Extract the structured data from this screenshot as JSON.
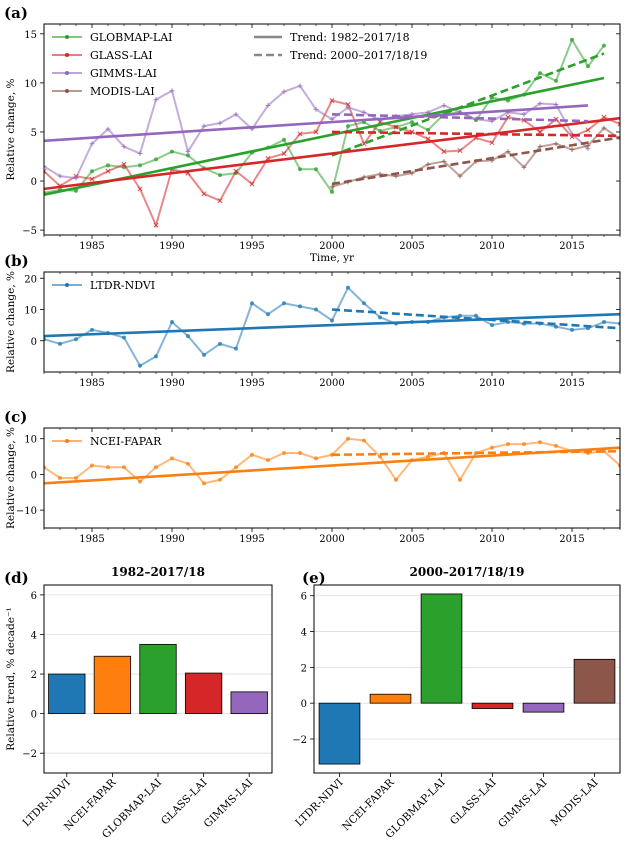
{
  "chart_data": [
    {
      "type": "line",
      "panel": "(a)",
      "xlabel": "Time, yr",
      "ylabel": "Relative change, %",
      "xlim": [
        1982,
        2018
      ],
      "ylim": [
        -5.5,
        16
      ],
      "xticks": [
        1985,
        1990,
        1995,
        2000,
        2005,
        2010,
        2015
      ],
      "yticks": [
        -5,
        0,
        5,
        10,
        15
      ],
      "legend": [
        "GLOBMAP-LAI",
        "GLASS-LAI",
        "GIMMS-LAI",
        "MODIS-LAI"
      ],
      "trend_legend": [
        "Trend: 1982–2017/18",
        "Trend: 2000–2017/18/19"
      ],
      "series": [
        {
          "name": "GLOBMAP-LAI",
          "color": "#2ca02c",
          "marker": "dot",
          "x": [
            1982,
            1983,
            1984,
            1985,
            1986,
            1987,
            1988,
            1989,
            1990,
            1991,
            1992,
            1993,
            1994,
            1995,
            1996,
            1997,
            1998,
            1999,
            2000,
            2001,
            2002,
            2003,
            2004,
            2005,
            2006,
            2007,
            2008,
            2009,
            2010,
            2011,
            2012,
            2013,
            2014,
            2015,
            2016,
            2017
          ],
          "y": [
            -1.2,
            -0.9,
            -1.0,
            1.0,
            1.6,
            1.4,
            1.6,
            2.2,
            3.0,
            2.6,
            1.3,
            0.6,
            0.8,
            2.9,
            3.4,
            4.2,
            1.2,
            1.2,
            -1.1,
            5.6,
            6.0,
            5.1,
            5.5,
            6.0,
            5.2,
            6.8,
            7.0,
            6.2,
            8.5,
            8.2,
            8.8,
            11.0,
            10.2,
            14.4,
            11.7,
            13.8
          ],
          "trend": {
            "x": [
              1982,
              2017
            ],
            "y": [
              -1.4,
              10.5
            ]
          },
          "trend2": {
            "x": [
              2000,
              2017
            ],
            "y": [
              2.6,
              13.0
            ]
          }
        },
        {
          "name": "GLASS-LAI",
          "color": "#d62728",
          "marker": "x",
          "x": [
            1982,
            1983,
            1984,
            1985,
            1986,
            1987,
            1988,
            1989,
            1990,
            1991,
            1992,
            1993,
            1994,
            1995,
            1996,
            1997,
            1998,
            1999,
            2000,
            2001,
            2002,
            2003,
            2004,
            2005,
            2006,
            2007,
            2008,
            2009,
            2010,
            2011,
            2012,
            2013,
            2014,
            2015,
            2016,
            2017,
            2018
          ],
          "y": [
            1.0,
            -0.5,
            0.5,
            0.2,
            1.0,
            1.7,
            -0.8,
            -4.5,
            1.2,
            0.8,
            -1.3,
            -2.0,
            1.0,
            -0.3,
            2.3,
            2.8,
            4.8,
            5.0,
            8.2,
            7.8,
            3.8,
            6.0,
            5.5,
            5.0,
            4.3,
            3.0,
            3.1,
            4.4,
            3.9,
            6.5,
            6.2,
            5.0,
            6.3,
            4.5,
            5.2,
            6.5,
            5.8
          ],
          "trend": {
            "x": [
              1982,
              2018
            ],
            "y": [
              -0.8,
              6.4
            ]
          },
          "trend2": {
            "x": [
              2000,
              2018
            ],
            "y": [
              5.0,
              4.6
            ]
          }
        },
        {
          "name": "GIMMS-LAI",
          "color": "#9467bd",
          "marker": "plus",
          "x": [
            1982,
            1983,
            1984,
            1985,
            1986,
            1987,
            1988,
            1989,
            1990,
            1991,
            1992,
            1993,
            1994,
            1995,
            1996,
            1997,
            1998,
            1999,
            2000,
            2001,
            2002,
            2003,
            2004,
            2005,
            2006,
            2007,
            2008,
            2009,
            2010,
            2011,
            2012,
            2013,
            2014,
            2015,
            2016
          ],
          "y": [
            1.5,
            0.5,
            0.3,
            3.8,
            5.3,
            3.5,
            2.8,
            8.3,
            9.2,
            3.0,
            5.6,
            5.9,
            6.8,
            5.3,
            7.7,
            9.1,
            9.7,
            7.3,
            6.3,
            7.5,
            7.0,
            6.2,
            6.6,
            6.8,
            7.0,
            7.7,
            7.0,
            6.3,
            6.1,
            7.0,
            6.8,
            7.9,
            7.8,
            4.8,
            3.3
          ],
          "trend": {
            "x": [
              1982,
              2016
            ],
            "y": [
              4.1,
              7.7
            ]
          },
          "trend2": {
            "x": [
              2000,
              2016
            ],
            "y": [
              6.8,
              6.1
            ]
          }
        },
        {
          "name": "MODIS-LAI",
          "color": "#8c564b",
          "marker": "plus",
          "x": [
            2000,
            2001,
            2002,
            2003,
            2004,
            2005,
            2006,
            2007,
            2008,
            2009,
            2010,
            2011,
            2012,
            2013,
            2014,
            2015,
            2016,
            2017,
            2018,
            2019
          ],
          "y": [
            -0.6,
            -0.1,
            0.4,
            0.7,
            0.5,
            0.8,
            1.7,
            2.0,
            0.5,
            2.0,
            2.1,
            3.0,
            1.4,
            3.5,
            3.8,
            3.2,
            3.6,
            5.4,
            4.3,
            4.8
          ],
          "trend2": {
            "x": [
              2000,
              2019
            ],
            "y": [
              -0.3,
              4.7
            ]
          }
        }
      ]
    },
    {
      "type": "line",
      "panel": "(b)",
      "ylabel": "Relative change, %",
      "xlim": [
        1982,
        2018
      ],
      "ylim": [
        -10,
        22
      ],
      "xticks": [
        1985,
        1990,
        1995,
        2000,
        2005,
        2010,
        2015
      ],
      "yticks": [
        0,
        10,
        20
      ],
      "legend": [
        "LTDR-NDVI"
      ],
      "series": [
        {
          "name": "LTDR-NDVI",
          "color": "#1f77b4",
          "marker": "dot",
          "x": [
            1982,
            1983,
            1984,
            1985,
            1986,
            1987,
            1988,
            1989,
            1990,
            1991,
            1992,
            1993,
            1994,
            1995,
            1996,
            1997,
            1998,
            1999,
            2000,
            2001,
            2002,
            2003,
            2004,
            2005,
            2006,
            2007,
            2008,
            2009,
            2010,
            2011,
            2012,
            2013,
            2014,
            2015,
            2016,
            2017,
            2018
          ],
          "y": [
            0.5,
            -1.0,
            0.5,
            3.5,
            2.5,
            1.0,
            -8.0,
            -5.0,
            6.0,
            1.5,
            -4.5,
            -1.0,
            -2.5,
            12.0,
            8.5,
            12.0,
            11.0,
            10.0,
            6.5,
            17.0,
            12.0,
            7.5,
            5.5,
            6.0,
            6.0,
            7.5,
            8.0,
            8.0,
            5.0,
            6.0,
            5.5,
            5.5,
            4.5,
            3.5,
            4.0,
            6.0,
            5.5
          ],
          "trend": {
            "x": [
              1982,
              2018
            ],
            "y": [
              1.5,
              8.5
            ]
          },
          "trend2": {
            "x": [
              2000,
              2018
            ],
            "y": [
              10.0,
              4.0
            ]
          }
        }
      ]
    },
    {
      "type": "line",
      "panel": "(c)",
      "ylabel": "Relative change, %",
      "xlim": [
        1982,
        2018
      ],
      "ylim": [
        -15,
        13
      ],
      "xticks": [
        1985,
        1990,
        1995,
        2000,
        2005,
        2010,
        2015
      ],
      "yticks": [
        -10,
        0,
        10
      ],
      "legend": [
        "NCEI-FAPAR"
      ],
      "series": [
        {
          "name": "NCEI-FAPAR",
          "color": "#ff7f0e",
          "marker": "dot",
          "x": [
            1982,
            1983,
            1984,
            1985,
            1986,
            1987,
            1988,
            1989,
            1990,
            1991,
            1992,
            1993,
            1994,
            1995,
            1996,
            1997,
            1998,
            1999,
            2000,
            2001,
            2002,
            2003,
            2004,
            2005,
            2006,
            2007,
            2008,
            2009,
            2010,
            2011,
            2012,
            2013,
            2014,
            2015,
            2016,
            2017,
            2018
          ],
          "y": [
            2.0,
            -1.0,
            -1.0,
            2.5,
            2.0,
            2.0,
            -2.0,
            2.0,
            4.5,
            3.0,
            -2.5,
            -1.5,
            2.0,
            5.5,
            4.0,
            6.0,
            6.0,
            4.5,
            5.5,
            10.0,
            9.5,
            5.0,
            -1.5,
            4.0,
            5.0,
            6.0,
            -1.5,
            6.0,
            7.5,
            8.5,
            8.5,
            9.0,
            8.0,
            6.5,
            6.0,
            6.5,
            2.5
          ],
          "trend": {
            "x": [
              1982,
              2018
            ],
            "y": [
              -2.5,
              7.5
            ]
          },
          "trend2": {
            "x": [
              2000,
              2018
            ],
            "y": [
              5.5,
              6.5
            ]
          }
        }
      ]
    },
    {
      "type": "bar",
      "panel": "(d)",
      "title": "1982–2017/18",
      "ylabel": "Relative trend, % decade⁻¹",
      "ylim": [
        -3,
        6.5
      ],
      "yticks": [
        -2,
        0,
        2,
        4,
        6
      ],
      "categories": [
        "LTDR-NDVI",
        "NCEI-FAPAR",
        "GLOBMAP-LAI",
        "GLASS-LAI",
        "GIMMS-LAI"
      ],
      "values": [
        2.0,
        2.9,
        3.5,
        2.05,
        1.1
      ],
      "colors": [
        "#1f77b4",
        "#ff7f0e",
        "#2ca02c",
        "#d62728",
        "#9467bd"
      ]
    },
    {
      "type": "bar",
      "panel": "(e)",
      "title": "2000–2017/18/19",
      "ylim": [
        -3.9,
        6.6
      ],
      "yticks": [
        -2,
        0,
        2,
        4,
        6
      ],
      "categories": [
        "LTDR-NDVI",
        "NCEI-FAPAR",
        "GLOBMAP-LAI",
        "GLASS-LAI",
        "GIMMS-LAI",
        "MODIS-LAI"
      ],
      "values": [
        -3.4,
        0.5,
        6.1,
        -0.3,
        -0.5,
        2.45
      ],
      "colors": [
        "#1f77b4",
        "#ff7f0e",
        "#2ca02c",
        "#d62728",
        "#9467bd",
        "#8c564b"
      ]
    }
  ]
}
